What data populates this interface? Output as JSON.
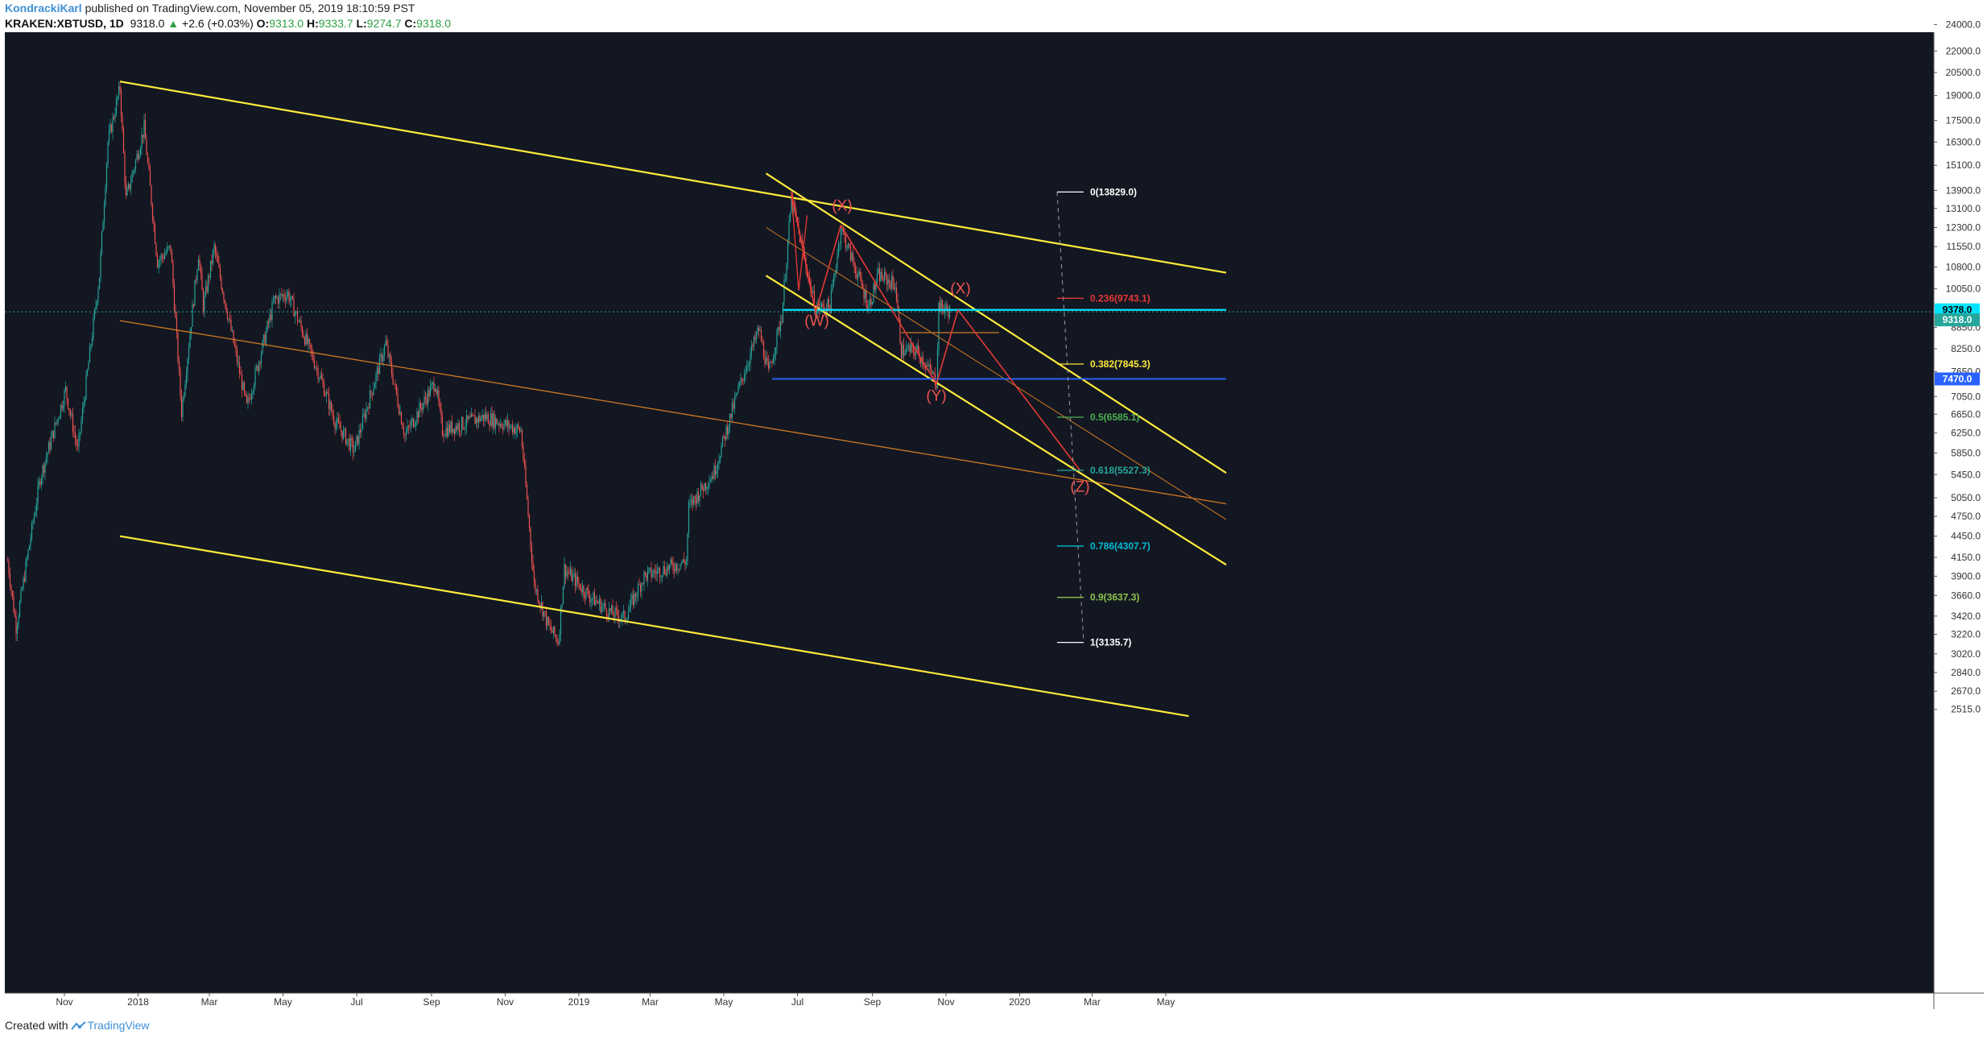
{
  "header": {
    "author": "KondrackiKarl",
    "published_text": "published on TradingView.com, November 05, 2019 18:10:59 PST",
    "symbol": "KRAKEN:XBTUSD, 1D",
    "last": "9318.0",
    "change_arrow": "▲",
    "change": "+2.6 (+0.03%)",
    "o_label": "O:",
    "o": "9313.0",
    "h_label": "H:",
    "h": "9333.7",
    "l_label": "L:",
    "l": "9274.7",
    "c_label": "C:",
    "c": "9318.0"
  },
  "footer": {
    "created_with": "Created with",
    "brand": "TradingView",
    "logo": "tradingview-logo-icon"
  },
  "colors": {
    "bg": "#131722",
    "up": "#26a69a",
    "down": "#ef5350",
    "yellow": "#ffeb3b",
    "orange": "#d17a22",
    "red": "#e53935",
    "cyan": "#00e5ff",
    "blue": "#2962ff"
  },
  "chart_data": {
    "type": "candlestick",
    "title": "",
    "y_axis": {
      "scale": "log",
      "range": [
        2450,
        24800
      ],
      "position": "right",
      "ticks": [
        "24000.0",
        "22000.0",
        "20500.0",
        "19000.0",
        "17500.0",
        "16300.0",
        "15100.0",
        "13900.0",
        "13100.0",
        "12300.0",
        "11550.0",
        "10800.0",
        "10050.0",
        "8850.0",
        "8250.0",
        "7650.0",
        "7050.0",
        "6650.0",
        "6250.0",
        "5850.0",
        "5450.0",
        "5050.0",
        "4750.0",
        "4450.0",
        "4150.0",
        "3900.0",
        "3660.0",
        "3420.0",
        "3220.0",
        "3020.0",
        "2840.0",
        "2670.0",
        "2515.0"
      ]
    },
    "x_axis": {
      "ticks": [
        {
          "label": "Nov",
          "date": "2017-11-01"
        },
        {
          "label": "2018",
          "date": "2018-01-01"
        },
        {
          "label": "Mar",
          "date": "2018-03-01"
        },
        {
          "label": "May",
          "date": "2018-05-01"
        },
        {
          "label": "Jul",
          "date": "2018-07-01"
        },
        {
          "label": "Sep",
          "date": "2018-09-01"
        },
        {
          "label": "Nov",
          "date": "2018-11-01"
        },
        {
          "label": "2019",
          "date": "2019-01-01"
        },
        {
          "label": "Mar",
          "date": "2019-03-01"
        },
        {
          "label": "May",
          "date": "2019-05-01"
        },
        {
          "label": "Jul",
          "date": "2019-07-01"
        },
        {
          "label": "Sep",
          "date": "2019-09-01"
        },
        {
          "label": "Nov",
          "date": "2019-11-01"
        },
        {
          "label": "2020",
          "date": "2020-01-01"
        },
        {
          "label": "Mar",
          "date": "2020-03-01"
        },
        {
          "label": "May",
          "date": "2020-05-01"
        }
      ]
    },
    "price_key_points": [
      [
        "2017-09-15",
        4100
      ],
      [
        "2017-09-22",
        3300
      ],
      [
        "2017-10-12",
        5400
      ],
      [
        "2017-11-02",
        7200
      ],
      [
        "2017-11-12",
        5900
      ],
      [
        "2017-11-30",
        10500
      ],
      [
        "2017-12-07",
        16300
      ],
      [
        "2017-12-17",
        19500
      ],
      [
        "2017-12-22",
        13500
      ],
      [
        "2018-01-06",
        17100
      ],
      [
        "2018-01-17",
        11000
      ],
      [
        "2018-01-28",
        11500
      ],
      [
        "2018-02-06",
        6700
      ],
      [
        "2018-02-20",
        11300
      ],
      [
        "2018-02-24",
        9500
      ],
      [
        "2018-03-05",
        11500
      ],
      [
        "2018-04-01",
        6800
      ],
      [
        "2018-04-24",
        9700
      ],
      [
        "2018-05-05",
        9900
      ],
      [
        "2018-06-01",
        7500
      ],
      [
        "2018-06-13",
        6500
      ],
      [
        "2018-06-29",
        5900
      ],
      [
        "2018-07-25",
        8400
      ],
      [
        "2018-08-10",
        6200
      ],
      [
        "2018-09-04",
        7400
      ],
      [
        "2018-09-10",
        6300
      ],
      [
        "2018-10-15",
        6600
      ],
      [
        "2018-11-14",
        6300
      ],
      [
        "2018-11-25",
        3800
      ],
      [
        "2018-12-07",
        3300
      ],
      [
        "2018-12-15",
        3150
      ],
      [
        "2018-12-20",
        4000
      ],
      [
        "2019-01-10",
        3650
      ],
      [
        "2019-01-28",
        3450
      ],
      [
        "2019-02-08",
        3400
      ],
      [
        "2019-02-24",
        3900
      ],
      [
        "2019-03-31",
        4100
      ],
      [
        "2019-04-02",
        4900
      ],
      [
        "2019-04-23",
        5500
      ],
      [
        "2019-05-13",
        7200
      ],
      [
        "2019-05-30",
        8800
      ],
      [
        "2019-06-07",
        7600
      ],
      [
        "2019-06-18",
        9200
      ],
      [
        "2019-06-26",
        13500
      ],
      [
        "2019-07-16",
        9400
      ],
      [
        "2019-07-28",
        9500
      ],
      [
        "2019-08-06",
        12300
      ],
      [
        "2019-08-29",
        9500
      ],
      [
        "2019-09-06",
        10500
      ],
      [
        "2019-09-20",
        10200
      ],
      [
        "2019-09-25",
        8200
      ],
      [
        "2019-10-08",
        8200
      ],
      [
        "2019-10-24",
        7400
      ],
      [
        "2019-10-26",
        9500
      ],
      [
        "2019-11-05",
        9318
      ]
    ],
    "current_price": 9318.0,
    "horizontal_levels": [
      {
        "name": "upper",
        "value": 9378.0,
        "label": "9378.0",
        "color": "#00e5ff"
      },
      {
        "name": "support",
        "value": 7470.0,
        "label": "7470.0",
        "color": "#2962ff"
      }
    ],
    "fibonacci": [
      {
        "ratio": "0",
        "value": 13829.0,
        "label": "0(13829.0)",
        "color": "#ffffff"
      },
      {
        "ratio": "0.236",
        "value": 9743.1,
        "label": "0.236(9743.1)",
        "color": "#e53935"
      },
      {
        "ratio": "0.382",
        "value": 7845.3,
        "label": "0.382(7845.3)",
        "color": "#ffeb3b"
      },
      {
        "ratio": "0.5",
        "value": 6585.1,
        "label": "0.5(6585.1)",
        "color": "#4caf50"
      },
      {
        "ratio": "0.618",
        "value": 5527.3,
        "label": "0.618(5527.3)",
        "color": "#26a69a"
      },
      {
        "ratio": "0.786",
        "value": 4307.7,
        "label": "0.786(4307.7)",
        "color": "#00bcd4"
      },
      {
        "ratio": "0.9",
        "value": 3637.3,
        "label": "0.9(3637.3)",
        "color": "#8bc34a"
      },
      {
        "ratio": "1",
        "value": 3135.7,
        "label": "1(3135.7)",
        "color": "#ffffff"
      }
    ],
    "wave_labels": [
      {
        "text": "(W)",
        "date": "2019-07-17",
        "price": 8900
      },
      {
        "text": "(X)",
        "date": "2019-08-07",
        "price": 13000
      },
      {
        "text": "(Y)",
        "date": "2019-10-24",
        "price": 6950
      },
      {
        "text": "(X)",
        "date": "2019-11-13",
        "price": 9900
      },
      {
        "text": "(Z)",
        "date": "2020-02-20",
        "price": 5150
      }
    ]
  }
}
